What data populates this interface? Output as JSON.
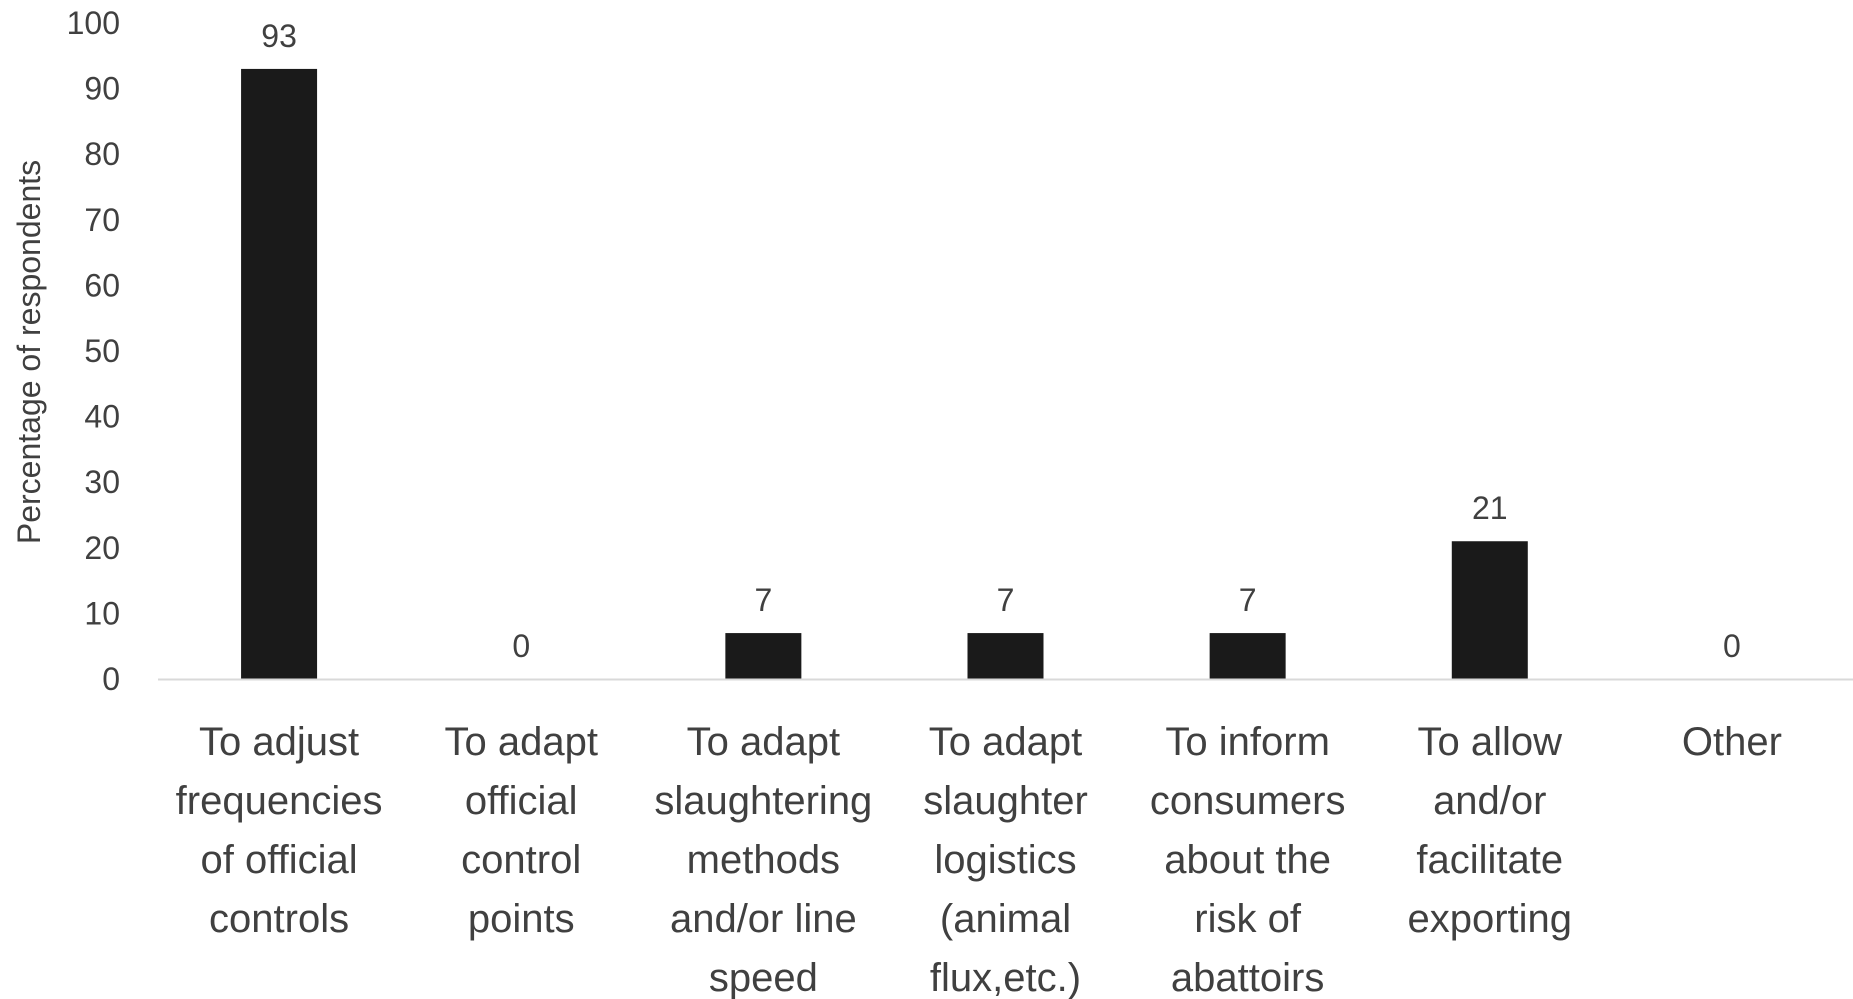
{
  "chart_data": {
    "type": "bar",
    "title": "",
    "xlabel": "",
    "ylabel": "Percentage of respondents",
    "ylim": [
      0,
      100
    ],
    "yticks": [
      0,
      10,
      20,
      30,
      40,
      50,
      60,
      70,
      80,
      90,
      100
    ],
    "grid": false,
    "legend": "none",
    "bar_color": "#1a1a1a",
    "axis_color": "#d9d9d9",
    "text_color": "#404040",
    "categories": [
      [
        "To adjust",
        "frequencies",
        "of official",
        "controls"
      ],
      [
        "To adapt",
        "official",
        "control",
        "points"
      ],
      [
        "To adapt",
        "slaughtering",
        "methods",
        "and/or line",
        "speed"
      ],
      [
        "To adapt",
        "slaughter",
        "logistics",
        "(animal",
        "flux,etc.)"
      ],
      [
        "To inform",
        "consumers",
        "about the",
        "risk of",
        "abattoirs"
      ],
      [
        "To allow",
        "and/or",
        "facilitate",
        "exporting"
      ],
      [
        "Other"
      ]
    ],
    "values": [
      93,
      0,
      7,
      7,
      7,
      21,
      0
    ],
    "data_labels": [
      "93",
      "0",
      "7",
      "7",
      "7",
      "21",
      "0"
    ]
  }
}
